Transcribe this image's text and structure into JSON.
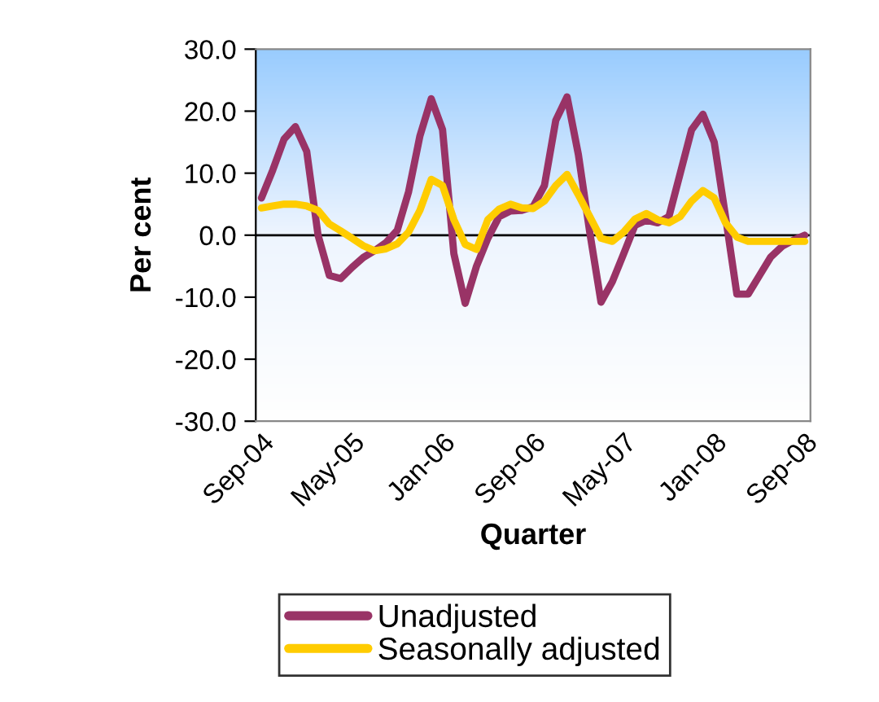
{
  "chart_data": {
    "type": "line",
    "xlabel": "Quarter",
    "ylabel": "Per cent",
    "categories": [
      "Sep-04",
      null,
      null,
      null,
      null,
      null,
      null,
      null,
      "May-05",
      null,
      null,
      null,
      null,
      null,
      null,
      null,
      "Jan-06",
      null,
      null,
      null,
      null,
      null,
      null,
      null,
      "Sep-06",
      null,
      null,
      null,
      null,
      null,
      null,
      null,
      "May-07",
      null,
      null,
      null,
      null,
      null,
      null,
      null,
      "Jan-08",
      null,
      null,
      null,
      null,
      null,
      null,
      null,
      "Sep-08"
    ],
    "series": [
      {
        "name": "Unadjusted",
        "color": "#993366",
        "values": [
          6.0,
          10.5,
          15.5,
          17.5,
          13.5,
          0.0,
          -6.5,
          -7.0,
          -5.2,
          -3.6,
          -2.5,
          -1.2,
          0.8,
          7.0,
          16.0,
          22.0,
          17.0,
          -3.0,
          -11.0,
          -5.0,
          -0.5,
          3.0,
          3.9,
          4.0,
          4.6,
          8.0,
          18.5,
          22.3,
          13.0,
          0.5,
          -10.8,
          -7.5,
          -3.0,
          1.6,
          2.4,
          2.0,
          3.0,
          10.0,
          17.0,
          19.5,
          15.0,
          3.0,
          -9.5,
          -9.5,
          -6.5,
          -3.5,
          -1.8,
          -0.8,
          0.0
        ]
      },
      {
        "name": "Seasonally adjusted",
        "color": "#ffcc00",
        "values": [
          4.4,
          4.7,
          5.0,
          5.0,
          4.7,
          4.0,
          1.8,
          0.7,
          -0.5,
          -1.7,
          -2.5,
          -2.2,
          -1.4,
          0.5,
          4.0,
          9.0,
          8.0,
          2.5,
          -1.5,
          -2.3,
          2.5,
          4.2,
          5.0,
          4.4,
          4.3,
          5.5,
          8.0,
          9.8,
          6.5,
          3.0,
          -0.5,
          -1.0,
          0.5,
          2.6,
          3.5,
          2.5,
          2.0,
          3.0,
          5.5,
          7.2,
          6.0,
          2.0,
          -0.3,
          -1.0,
          -1.0,
          -1.0,
          -1.0,
          -1.0,
          -1.0
        ]
      }
    ],
    "ylim": [
      -30,
      30
    ],
    "yticks": [
      {
        "value": -30,
        "label": "-30.0"
      },
      {
        "value": -20,
        "label": "-20.0"
      },
      {
        "value": -10,
        "label": "-10.0"
      },
      {
        "value": 0,
        "label": "0.0"
      },
      {
        "value": 10,
        "label": "10.0"
      },
      {
        "value": 20,
        "label": "20.0"
      },
      {
        "value": 30,
        "label": "30.0"
      }
    ],
    "ref_lines": [
      {
        "axis": "y",
        "value": 0,
        "color": "#000000"
      }
    ],
    "grid": false,
    "legend": "bottom",
    "marker": "none",
    "line_style": "solid"
  }
}
